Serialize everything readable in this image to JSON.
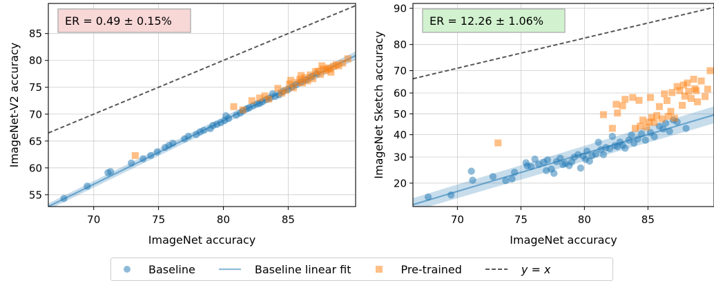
{
  "colors": {
    "baseline": "#1f77b4",
    "pretrained": "#ff7f0e",
    "identity_line": "#555555",
    "er_box_left_bg": "#f8d7d7",
    "er_box_right_bg": "#d2f2cf",
    "grid": "#cccccc"
  },
  "legend": {
    "placement": "bottom-center",
    "items": [
      {
        "marker": "circle",
        "label": "Baseline"
      },
      {
        "marker": "line",
        "label": "Baseline linear fit"
      },
      {
        "marker": "square",
        "label": "Pre-trained"
      },
      {
        "marker": "dashed-line",
        "label": "y = x"
      }
    ]
  },
  "chart_data": [
    {
      "type": "scatter",
      "title": "",
      "er_annotation": "ER = 0.49 ± 0.15%",
      "annotation_placement": "top-left",
      "xlabel": "ImageNet accuracy",
      "ylabel": "ImageNet-V2 accuracy",
      "xlim": [
        66.5,
        90.2
      ],
      "ylim": [
        52.8,
        90.6
      ],
      "xticks": [
        70,
        75,
        80,
        85
      ],
      "yticks": [
        55,
        60,
        65,
        70,
        75,
        80,
        85
      ],
      "grid": true,
      "identity_line": {
        "x": [
          66.5,
          90.2
        ],
        "y": [
          66.5,
          90.2
        ]
      },
      "fit_line": {
        "x": [
          66.5,
          90.2
        ],
        "y": [
          52.8,
          80.9
        ],
        "band": 0.4
      },
      "series": [
        {
          "name": "Baseline",
          "marker": "circle",
          "points": [
            [
              67.7,
              54.3
            ],
            [
              69.5,
              56.6
            ],
            [
              71.1,
              59.1
            ],
            [
              71.3,
              59.3
            ],
            [
              72.9,
              60.9
            ],
            [
              73.8,
              61.7
            ],
            [
              74.4,
              62.3
            ],
            [
              74.9,
              63.0
            ],
            [
              75.5,
              63.8
            ],
            [
              75.8,
              64.2
            ],
            [
              76.1,
              64.6
            ],
            [
              77.0,
              65.4
            ],
            [
              77.3,
              65.9
            ],
            [
              77.9,
              66.2
            ],
            [
              78.2,
              66.7
            ],
            [
              78.5,
              67.0
            ],
            [
              79.0,
              67.3
            ],
            [
              79.2,
              67.9
            ],
            [
              79.5,
              68.1
            ],
            [
              79.8,
              68.4
            ],
            [
              80.1,
              68.8
            ],
            [
              80.4,
              69.2
            ],
            [
              80.2,
              69.7
            ],
            [
              81.0,
              69.8
            ],
            [
              81.3,
              70.2
            ],
            [
              81.5,
              70.6
            ],
            [
              81.8,
              71.0
            ],
            [
              82.0,
              71.2
            ],
            [
              82.3,
              71.6
            ],
            [
              82.6,
              71.9
            ],
            [
              83.0,
              72.3
            ],
            [
              83.3,
              72.7
            ],
            [
              83.6,
              73.0
            ],
            [
              84.0,
              73.3
            ],
            [
              84.3,
              73.6
            ],
            [
              84.6,
              74.2
            ],
            [
              85.0,
              74.6
            ],
            [
              85.3,
              75.1
            ],
            [
              85.6,
              75.5
            ],
            [
              86.0,
              76.0
            ],
            [
              86.4,
              76.4
            ],
            [
              86.8,
              77.0
            ],
            [
              87.2,
              77.5
            ],
            [
              83.8,
              73.8
            ],
            [
              82.8,
              72.0
            ]
          ]
        },
        {
          "name": "Pre-trained",
          "marker": "square",
          "points": [
            [
              73.2,
              62.3
            ],
            [
              80.8,
              71.4
            ],
            [
              81.5,
              70.8
            ],
            [
              82.2,
              72.5
            ],
            [
              82.8,
              73.0
            ],
            [
              83.2,
              73.4
            ],
            [
              83.5,
              72.8
            ],
            [
              84.2,
              74.8
            ],
            [
              84.5,
              73.9
            ],
            [
              84.8,
              74.4
            ],
            [
              85.1,
              75.6
            ],
            [
              85.4,
              74.9
            ],
            [
              85.7,
              75.9
            ],
            [
              85.9,
              76.5
            ],
            [
              86.1,
              75.8
            ],
            [
              86.3,
              76.8
            ],
            [
              86.5,
              76.2
            ],
            [
              86.7,
              77.3
            ],
            [
              86.9,
              76.6
            ],
            [
              87.1,
              77.9
            ],
            [
              87.3,
              78.0
            ],
            [
              87.5,
              77.4
            ],
            [
              87.7,
              78.4
            ],
            [
              87.9,
              78.1
            ],
            [
              88.1,
              78.6
            ],
            [
              88.3,
              77.8
            ],
            [
              88.5,
              78.9
            ],
            [
              88.7,
              79.2
            ],
            [
              88.9,
              79.0
            ],
            [
              89.2,
              79.5
            ],
            [
              88.2,
              78.4
            ],
            [
              87.6,
              79.0
            ],
            [
              86.0,
              77.2
            ],
            [
              89.6,
              80.3
            ],
            [
              85.2,
              76.3
            ]
          ]
        }
      ]
    },
    {
      "type": "scatter",
      "title": "",
      "er_annotation": "ER = 12.26 ± 1.06%",
      "annotation_placement": "top-left",
      "xlabel": "ImageNet accuracy",
      "ylabel": "ImageNet Sketch accuracy",
      "xlim": [
        66.5,
        90.2
      ],
      "ylim": [
        13,
        91
      ],
      "yscale": "probit",
      "xticks": [
        70,
        75,
        80,
        85
      ],
      "yticks": [
        20,
        30,
        40,
        50,
        60,
        70,
        80,
        90
      ],
      "grid": true,
      "identity_line": {
        "x": [
          66.5,
          90.2
        ],
        "y": [
          66.5,
          90.2
        ]
      },
      "fit_line": {
        "x": [
          66.5,
          90.2
        ],
        "y": [
          13.5,
          49.5
        ],
        "band": 1.5
      },
      "series": [
        {
          "name": "Baseline",
          "marker": "circle",
          "points": [
            [
              67.7,
              15.6
            ],
            [
              69.5,
              16.2
            ],
            [
              71.1,
              24.3
            ],
            [
              71.2,
              21.0
            ],
            [
              72.8,
              22.3
            ],
            [
              73.8,
              20.9
            ],
            [
              74.3,
              21.5
            ],
            [
              74.5,
              23.9
            ],
            [
              75.4,
              27.6
            ],
            [
              75.5,
              26.4
            ],
            [
              75.8,
              26.1
            ],
            [
              76.1,
              29.1
            ],
            [
              76.4,
              27.0
            ],
            [
              76.8,
              27.8
            ],
            [
              77.0,
              24.5
            ],
            [
              77.1,
              28.8
            ],
            [
              77.4,
              25.1
            ],
            [
              77.6,
              23.5
            ],
            [
              77.8,
              28.1
            ],
            [
              78.1,
              29.5
            ],
            [
              78.3,
              26.9
            ],
            [
              78.5,
              27.3
            ],
            [
              78.8,
              26.5
            ],
            [
              79.0,
              28.0
            ],
            [
              79.2,
              29.9
            ],
            [
              79.5,
              31.0
            ],
            [
              79.7,
              25.5
            ],
            [
              79.9,
              30.4
            ],
            [
              80.1,
              29.0
            ],
            [
              80.2,
              32.5
            ],
            [
              80.4,
              28.3
            ],
            [
              80.6,
              30.6
            ],
            [
              80.9,
              31.3
            ],
            [
              81.1,
              36.5
            ],
            [
              81.3,
              33.2
            ],
            [
              81.5,
              31.0
            ],
            [
              81.7,
              34.1
            ],
            [
              82.0,
              33.6
            ],
            [
              82.2,
              39.2
            ],
            [
              82.4,
              35.0
            ],
            [
              82.6,
              34.5
            ],
            [
              82.8,
              36.6
            ],
            [
              83.0,
              35.2
            ],
            [
              83.2,
              33.8
            ],
            [
              83.5,
              37.5
            ],
            [
              83.7,
              39.8
            ],
            [
              83.9,
              36.1
            ],
            [
              84.2,
              38.0
            ],
            [
              84.5,
              40.4
            ],
            [
              84.8,
              37.4
            ],
            [
              85.2,
              41.0
            ],
            [
              85.5,
              39.1
            ],
            [
              85.9,
              44.0
            ],
            [
              86.2,
              42.7
            ],
            [
              86.4,
              45.5
            ],
            [
              86.7,
              41.6
            ],
            [
              87.0,
              47.0
            ],
            [
              87.3,
              46.1
            ],
            [
              88.0,
              43.0
            ]
          ]
        },
        {
          "name": "Pre-trained",
          "marker": "square",
          "points": [
            [
              73.2,
              36.2
            ],
            [
              81.5,
              49.6
            ],
            [
              82.2,
              43.0
            ],
            [
              82.6,
              50.4
            ],
            [
              82.5,
              54.6
            ],
            [
              83.0,
              53.9
            ],
            [
              83.2,
              57.0
            ],
            [
              83.8,
              57.9
            ],
            [
              84.3,
              56.5
            ],
            [
              84.4,
              44.1
            ],
            [
              84.6,
              47.0
            ],
            [
              84.9,
              43.6
            ],
            [
              85.1,
              46.0
            ],
            [
              85.3,
              48.2
            ],
            [
              85.5,
              45.9
            ],
            [
              85.7,
              49.2
            ],
            [
              85.9,
              53.5
            ],
            [
              86.1,
              47.6
            ],
            [
              86.3,
              59.6
            ],
            [
              86.5,
              56.4
            ],
            [
              86.6,
              48.8
            ],
            [
              86.8,
              51.2
            ],
            [
              86.9,
              60.2
            ],
            [
              87.1,
              47.9
            ],
            [
              87.3,
              63.0
            ],
            [
              87.5,
              61.1
            ],
            [
              87.7,
              54.1
            ],
            [
              87.8,
              63.7
            ],
            [
              87.9,
              58.5
            ],
            [
              88.1,
              64.6
            ],
            [
              88.2,
              60.8
            ],
            [
              88.4,
              57.4
            ],
            [
              88.6,
              66.3
            ],
            [
              88.7,
              62.0
            ],
            [
              88.8,
              61.1
            ],
            [
              88.9,
              55.8
            ],
            [
              89.2,
              65.5
            ],
            [
              89.5,
              58.3
            ],
            [
              89.9,
              70.0
            ],
            [
              89.7,
              61.8
            ],
            [
              84.0,
              43.0
            ],
            [
              85.2,
              57.9
            ]
          ]
        }
      ]
    }
  ]
}
